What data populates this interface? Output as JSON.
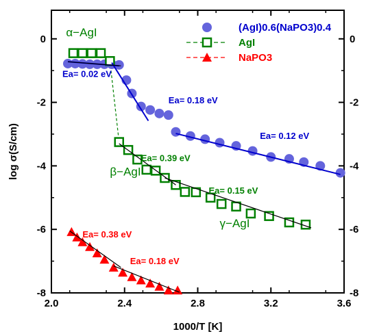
{
  "chart_data": {
    "type": "scatter",
    "xlabel": "1000/T [K]",
    "ylabel": "log σ(S/cm)",
    "xlim": [
      2.0,
      3.6
    ],
    "ylim": [
      -8,
      1
    ],
    "x_ticks": [
      "2.0",
      "2.4",
      "2.8",
      "3.2",
      "3.6"
    ],
    "x_tick_values": [
      2.0,
      2.4,
      2.8,
      3.2,
      3.6
    ],
    "y_ticks": [
      "0",
      "-2",
      "-4",
      "-6",
      "-8"
    ],
    "y_tick_values": [
      0,
      -2,
      -4,
      -6,
      -8
    ],
    "mirror_right_axis": true,
    "grid": false,
    "legend_position": "top-right",
    "series": [
      {
        "name": "(AgI)0.6(NaPO3)0.4",
        "marker": "circle",
        "color": "#6464dc",
        "x": [
          2.09,
          2.13,
          2.17,
          2.21,
          2.25,
          2.29,
          2.33,
          2.37,
          2.41,
          2.44,
          2.49,
          2.54,
          2.59,
          2.64,
          2.68,
          2.76,
          2.84,
          2.92,
          3.01,
          3.1,
          3.2,
          3.3,
          3.38,
          3.47,
          3.58
        ],
        "y": [
          -0.78,
          -0.78,
          -0.79,
          -0.8,
          -0.8,
          -0.8,
          -0.8,
          -0.82,
          -1.3,
          -1.72,
          -2.13,
          -2.24,
          -2.35,
          -2.4,
          -2.93,
          -3.06,
          -3.16,
          -3.27,
          -3.37,
          -3.53,
          -3.72,
          -3.78,
          -3.88,
          -4.0,
          -4.22
        ]
      },
      {
        "name": "AgI",
        "marker": "square-open",
        "color": "#008000",
        "x": [
          2.12,
          2.17,
          2.22,
          2.27,
          2.32,
          2.37,
          2.42,
          2.47,
          2.52,
          2.57,
          2.62,
          2.68,
          2.73,
          2.79,
          2.87,
          2.93,
          3.01,
          3.09,
          3.19,
          3.3,
          3.39
        ],
        "y": [
          -0.45,
          -0.45,
          -0.45,
          -0.45,
          -0.7,
          -3.25,
          -3.5,
          -3.8,
          -4.12,
          -4.15,
          -4.38,
          -4.6,
          -4.82,
          -4.83,
          -5.0,
          -5.2,
          -5.28,
          -5.5,
          -5.58,
          -5.78,
          -5.85
        ]
      },
      {
        "name": "NaPO3",
        "marker": "triangle",
        "color": "#ff0000",
        "x": [
          2.11,
          2.14,
          2.17,
          2.21,
          2.25,
          2.29,
          2.34,
          2.39,
          2.44,
          2.49,
          2.54,
          2.59,
          2.64,
          2.69
        ],
        "y": [
          -6.08,
          -6.25,
          -6.4,
          -6.55,
          -6.75,
          -6.95,
          -7.2,
          -7.36,
          -7.5,
          -7.6,
          -7.7,
          -7.8,
          -7.92,
          -7.92
        ]
      }
    ],
    "fit_lines": [
      {
        "color": "#0000cd",
        "x": [
          2.09,
          2.37
        ],
        "y": [
          -0.72,
          -0.85
        ]
      },
      {
        "color": "#0000cd",
        "x": [
          2.33,
          2.53
        ],
        "y": [
          -0.75,
          -2.58
        ]
      },
      {
        "color": "#0000cd",
        "x": [
          2.68,
          3.58
        ],
        "y": [
          -2.98,
          -4.27
        ]
      },
      {
        "color": "#000000",
        "x": [
          2.09,
          2.38
        ],
        "y": [
          -0.72,
          -0.85
        ]
      },
      {
        "color": "#000000",
        "x": [
          2.37,
          2.68
        ],
        "y": [
          -3.3,
          -4.6
        ]
      },
      {
        "color": "#000000",
        "x": [
          2.62,
          3.42
        ],
        "y": [
          -4.38,
          -5.95
        ]
      },
      {
        "color": "#000000",
        "x": [
          2.1,
          2.38
        ],
        "y": [
          -6.05,
          -7.2
        ]
      },
      {
        "color": "#000000",
        "x": [
          2.34,
          2.7
        ],
        "y": [
          -7.15,
          -7.98
        ]
      }
    ],
    "connector_line": {
      "color": "#008000",
      "dashed": true,
      "x": [
        2.32,
        2.37
      ],
      "y": [
        -0.7,
        -3.25
      ]
    },
    "annotations": [
      {
        "text": "Ea= 0.02 eV",
        "color": "#0000cd",
        "x": 2.06,
        "y": -1.2
      },
      {
        "text": "Ea= 0.18 eV",
        "color": "#0000cd",
        "x": 2.64,
        "y": -2.03
      },
      {
        "text": "Ea= 0.12 eV",
        "color": "#0000cd",
        "x": 3.14,
        "y": -3.15
      },
      {
        "text": "Ea= 0.39 eV",
        "color": "#008000",
        "x": 2.49,
        "y": -3.85
      },
      {
        "text": "Ea= 0.15 eV",
        "color": "#008000",
        "x": 2.86,
        "y": -4.88
      },
      {
        "text": "Ea= 0.38 eV",
        "color": "#ff0000",
        "x": 2.17,
        "y": -6.25
      },
      {
        "text": "Ea= 0.18 eV",
        "color": "#ff0000",
        "x": 2.43,
        "y": -7.1
      },
      {
        "text": "α−AgI",
        "color": "#008000",
        "x": 2.08,
        "y": 0.08,
        "style": "phase"
      },
      {
        "text": "β−AgI",
        "color": "#008000",
        "x": 2.32,
        "y": -4.3,
        "style": "phase"
      },
      {
        "text": "γ−AgI",
        "color": "#008000",
        "x": 2.92,
        "y": -5.93,
        "style": "phase"
      }
    ]
  }
}
